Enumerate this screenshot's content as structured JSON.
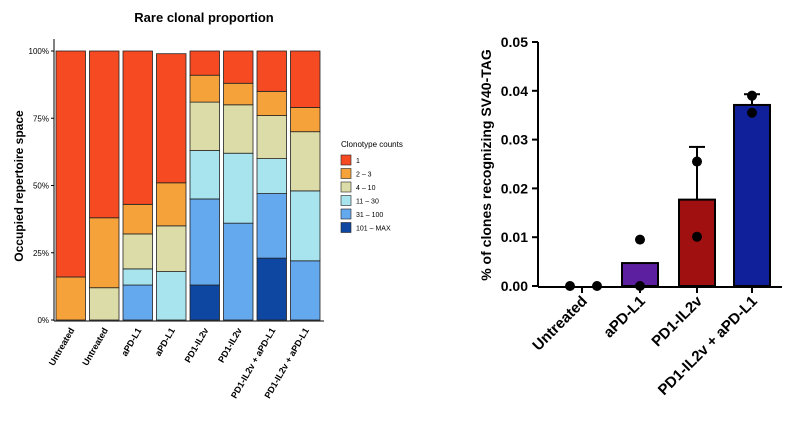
{
  "chart_data": [
    {
      "type": "bar",
      "stacked": true,
      "title": "Rare clonal proportion",
      "ylabel": "Occupied repertoire space",
      "xlabel": "",
      "ylim": [
        0,
        100
      ],
      "yticks": [
        0,
        25,
        50,
        75,
        100
      ],
      "ytick_labels": [
        "0%",
        "25%",
        "50%",
        "75%",
        "100%"
      ],
      "categories": [
        "Untreated",
        "Untreated",
        "aPD-L1",
        "aPD-L1",
        "PD1-IL2v",
        "PD1-IL2v",
        "PD1-IL2v + aPD-L1",
        "PD1-IL2v + aPD-L1"
      ],
      "legend_title": "Clonotype counts",
      "legend_position": "right",
      "series": [
        {
          "name": "101 – MAX",
          "color": "#0d47a1",
          "values": [
            0,
            0,
            0,
            0,
            13,
            0,
            23,
            0
          ]
        },
        {
          "name": "31 – 100",
          "color": "#64a8ee",
          "values": [
            0,
            0,
            13,
            0,
            32,
            36,
            24,
            22
          ]
        },
        {
          "name": "11 – 30",
          "color": "#a8e4ee",
          "values": [
            0,
            0,
            6,
            18,
            18,
            26,
            13,
            26
          ]
        },
        {
          "name": "4 – 10",
          "color": "#dcdca8",
          "values": [
            0,
            12,
            13,
            17,
            18,
            18,
            16,
            22
          ]
        },
        {
          "name": "2 – 3",
          "color": "#f6a23a",
          "values": [
            16,
            26,
            11,
            16,
            10,
            8,
            9,
            9
          ]
        },
        {
          "name": "1",
          "color": "#f64a22",
          "values": [
            84,
            62,
            57,
            48,
            9,
            12,
            15,
            21
          ]
        }
      ]
    },
    {
      "type": "bar",
      "title": "",
      "ylabel": "% of clones recognizing SV40-TAG",
      "xlabel": "",
      "ylim": [
        0,
        0.05
      ],
      "yticks": [
        0,
        0.01,
        0.02,
        0.03,
        0.04,
        0.05
      ],
      "ytick_labels": [
        "0.00",
        "0.01",
        "0.02",
        "0.03",
        "0.04",
        "0.05"
      ],
      "categories": [
        "Untreated",
        "aPD-L1",
        "PD1-IL2v",
        "PD1-IL2v + aPD-L1"
      ],
      "values": [
        0,
        0.0047,
        0.0177,
        0.0371
      ],
      "error_upper": [
        0,
        0,
        0.0285,
        0.0393
      ],
      "colors": [
        "#ffffff",
        "#5b1fa0",
        "#a01010",
        "#10209a"
      ],
      "points": [
        [
          0,
          0
        ],
        [
          0.0095,
          0
        ],
        [
          0.0255,
          0.0101
        ],
        [
          0.039,
          0.0355
        ]
      ]
    }
  ]
}
